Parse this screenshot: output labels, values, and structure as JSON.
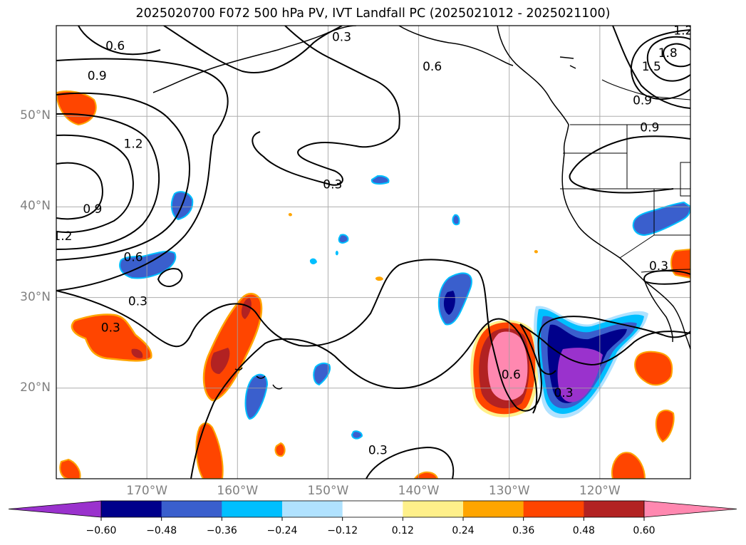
{
  "figure": {
    "title": "2025020700 F072 500 hPa PV, IVT Landfall PC (2025021012 - 2025021100)"
  },
  "map": {
    "extent": {
      "lon_min": -180,
      "lon_max": -110,
      "lat_min": 10,
      "lat_max": 60
    },
    "gridline_color": "#a0a0a0",
    "lat_labels": [
      {
        "lat": 50,
        "text": "50°N"
      },
      {
        "lat": 40,
        "text": "40°N"
      },
      {
        "lat": 30,
        "text": "30°N"
      },
      {
        "lat": 20,
        "text": "20°N"
      }
    ],
    "lon_labels": [
      {
        "lon": -170,
        "text": "170°W"
      },
      {
        "lon": -160,
        "text": "160°W"
      },
      {
        "lon": -150,
        "text": "150°W"
      },
      {
        "lon": -140,
        "text": "140°W"
      },
      {
        "lon": -130,
        "text": "130°W"
      },
      {
        "lon": -120,
        "text": "120°W"
      }
    ],
    "contour_labels": [
      {
        "text": "0.3",
        "lon": -148.5,
        "lat": 58.8
      },
      {
        "text": "0.6",
        "lon": -173.5,
        "lat": 57.8
      },
      {
        "text": "0.6",
        "lon": -138.5,
        "lat": 55.5
      },
      {
        "text": "0.9",
        "lon": -175.5,
        "lat": 54.5
      },
      {
        "text": "1.2",
        "lon": -171.5,
        "lat": 47.0
      },
      {
        "text": "0.3",
        "lon": -149.5,
        "lat": 42.5
      },
      {
        "text": "0.9",
        "lon": -176.0,
        "lat": 39.8
      },
      {
        "text": "1.2",
        "lon": -179.3,
        "lat": 36.8
      },
      {
        "text": "0.6",
        "lon": -171.5,
        "lat": 34.5
      },
      {
        "text": "0.3",
        "lon": -171.0,
        "lat": 29.6
      },
      {
        "text": "0.3",
        "lon": -174.0,
        "lat": 26.7
      },
      {
        "text": "0.3",
        "lon": -144.5,
        "lat": 13.2
      },
      {
        "text": "0.6",
        "lon": -129.8,
        "lat": 21.5
      },
      {
        "text": "0.3",
        "lon": -124.0,
        "lat": 19.5
      },
      {
        "text": "1.5",
        "lon": -114.3,
        "lat": 55.5
      },
      {
        "text": "1.8",
        "lon": -112.5,
        "lat": 57.0
      },
      {
        "text": "1.2",
        "lon": -110.8,
        "lat": 59.5
      },
      {
        "text": "0.9",
        "lon": -115.3,
        "lat": 51.8
      },
      {
        "text": "0.9",
        "lon": -114.5,
        "lat": 48.8
      },
      {
        "text": "0.3",
        "lon": -113.5,
        "lat": 33.5
      }
    ]
  },
  "colorbar": {
    "tick_labels": [
      "−0.60",
      "−0.48",
      "−0.36",
      "−0.24",
      "−0.12",
      "0.12",
      "0.24",
      "0.36",
      "0.48",
      "0.60"
    ],
    "colors": [
      "#9a32cd",
      "#00008b",
      "#3a5fcd",
      "#00bfff",
      "#b0e2ff",
      "#ffffff",
      "#fff08a",
      "#ffa500",
      "#ff4500",
      "#b22222",
      "#ff88b0"
    ]
  }
}
